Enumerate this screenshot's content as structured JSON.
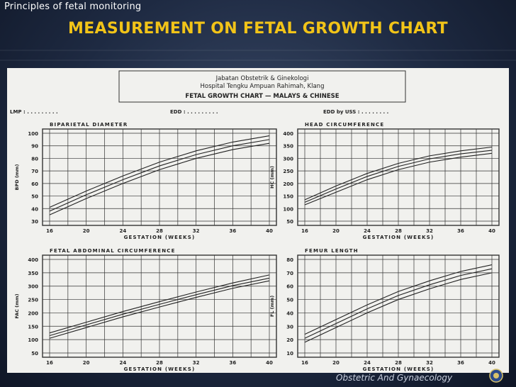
{
  "slide": {
    "course_title": "Principles of fetal monitoring",
    "title": "MEASUREMENT ON FETAL GROWTH CHART",
    "footer": "Obstetric And Gynaecology"
  },
  "scan_header": {
    "line1": "Jabatan Obstetrik & Ginekologi",
    "line2": "Hospital Tengku Ampuan Rahimah, Klang",
    "chart_title": "FETAL GROWTH CHART — MALAYS & CHINESE",
    "lmp_label": "LMP : . . . . . . . . .",
    "edd_label": "EDD : . . . . . . . . .",
    "edd_uss_label": "EDD by USS : . . . . . . . ."
  },
  "chart_data": [
    {
      "type": "line",
      "title": "BIPARIETAL DIAMETER",
      "xlabel": "GESTATION (WEEKS)",
      "ylabel": "BPD (mm)",
      "xlim": [
        16,
        40
      ],
      "ylim": [
        30,
        100
      ],
      "x_ticks": [
        16,
        20,
        24,
        28,
        32,
        36,
        40
      ],
      "y_ticks": [
        30,
        40,
        50,
        60,
        70,
        80,
        90,
        100
      ],
      "grid": true,
      "x": [
        16,
        20,
        24,
        28,
        32,
        36,
        40
      ],
      "series": [
        {
          "values": [
            35,
            48,
            60,
            71,
            80,
            87,
            92
          ]
        },
        {
          "values": [
            38,
            51,
            63,
            74,
            83,
            90,
            95
          ]
        },
        {
          "values": [
            41,
            54,
            66,
            77,
            86,
            93,
            98
          ]
        }
      ]
    },
    {
      "type": "line",
      "title": "HEAD CIRCUMFERENCE",
      "xlabel": "GESTATION (WEEKS)",
      "ylabel": "HC (mm)",
      "xlim": [
        16,
        40
      ],
      "ylim": [
        50,
        400
      ],
      "x_ticks": [
        16,
        20,
        24,
        28,
        32,
        36,
        40
      ],
      "y_ticks": [
        50,
        100,
        150,
        200,
        250,
        300,
        350,
        400
      ],
      "grid": true,
      "x": [
        16,
        20,
        24,
        28,
        32,
        36,
        40
      ],
      "series": [
        {
          "values": [
            115,
            165,
            215,
            255,
            285,
            305,
            320
          ]
        },
        {
          "values": [
            125,
            178,
            228,
            268,
            298,
            318,
            332
          ]
        },
        {
          "values": [
            135,
            190,
            240,
            280,
            310,
            330,
            345
          ]
        }
      ]
    },
    {
      "type": "line",
      "title": "FETAL ABDOMINAL CIRCUMFERENCE",
      "xlabel": "GESTATION (WEEKS)",
      "ylabel": "FAC (mm)",
      "xlim": [
        16,
        40
      ],
      "ylim": [
        50,
        400
      ],
      "x_ticks": [
        16,
        20,
        24,
        28,
        32,
        36,
        40
      ],
      "y_ticks": [
        50,
        100,
        150,
        200,
        250,
        300,
        350,
        400
      ],
      "grid": true,
      "x": [
        16,
        20,
        24,
        28,
        32,
        36,
        40
      ],
      "series": [
        {
          "values": [
            105,
            145,
            185,
            222,
            258,
            292,
            320
          ]
        },
        {
          "values": [
            115,
            155,
            195,
            232,
            268,
            302,
            330
          ]
        },
        {
          "values": [
            125,
            165,
            205,
            242,
            278,
            312,
            342
          ]
        }
      ]
    },
    {
      "type": "line",
      "title": "FEMUR LENGTH",
      "xlabel": "GESTATION (WEEKS)",
      "ylabel": "FL (mm)",
      "xlim": [
        16,
        40
      ],
      "ylim": [
        10,
        80
      ],
      "x_ticks": [
        16,
        20,
        24,
        28,
        32,
        36,
        40
      ],
      "y_ticks": [
        10,
        20,
        30,
        40,
        50,
        60,
        70,
        80
      ],
      "grid": true,
      "x": [
        16,
        20,
        24,
        28,
        32,
        36,
        40
      ],
      "series": [
        {
          "values": [
            18,
            29,
            40,
            50,
            58,
            65,
            70
          ]
        },
        {
          "values": [
            21,
            32,
            43,
            53,
            61,
            68,
            73
          ]
        },
        {
          "values": [
            24,
            35,
            46,
            56,
            64,
            71,
            76
          ]
        }
      ]
    }
  ]
}
